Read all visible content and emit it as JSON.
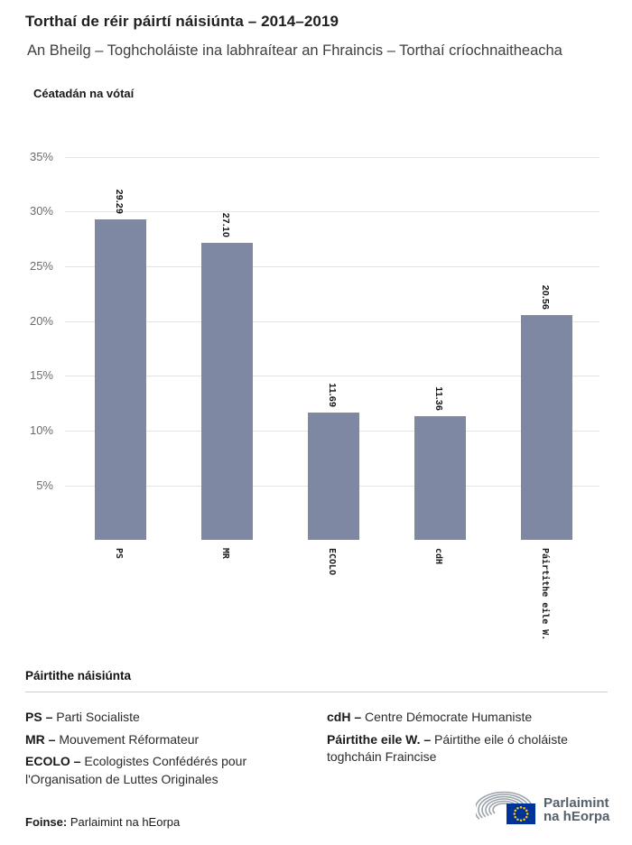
{
  "header": {
    "title": "Torthaí de réir páirtí náisiúnta – 2014–2019",
    "subtitle": "An Bheilg – Toghcholáiste ina labhraítear an Fhraincis – Torthaí críochnaitheacha"
  },
  "chart_data": {
    "type": "bar",
    "title": "Céatadán na vótaí",
    "categories": [
      "PS",
      "MR",
      "ECOLO",
      "cdH",
      "Páirtithe eile W."
    ],
    "values": [
      29.29,
      27.1,
      11.69,
      11.36,
      20.56
    ],
    "value_labels": [
      "29.29",
      "27.10",
      "11.69",
      "11.36",
      "20.56"
    ],
    "ylabel": "Céatadán na vótaí",
    "xlabel": "",
    "yticks": [
      35,
      30,
      25,
      20,
      15,
      10,
      5
    ],
    "ytick_suffix": "%",
    "ylim": [
      0,
      37.5
    ],
    "grid": true,
    "bar_color": "#7E88A3",
    "grid_color": "#e4e4e4"
  },
  "legend": {
    "heading": "Páirtithe náisiúnta",
    "left": [
      {
        "abbr": "PS –",
        "text": " Parti Socialiste"
      },
      {
        "abbr": "MR –",
        "text": " Mouvement Réformateur"
      },
      {
        "abbr": "ECOLO –",
        "text": " Ecologistes Confédérés pour l'Organisation de Luttes Originales"
      }
    ],
    "right": [
      {
        "abbr": "cdH –",
        "text": " Centre Démocrate Humaniste"
      },
      {
        "abbr": "Páirtithe eile W. –",
        "text": " Páirtithe eile ó choláiste toghcháin Fraincise"
      }
    ]
  },
  "footer": {
    "source_label": "Foinse:",
    "source_text": " Parlaimint na hEorpa",
    "logo_line1": "Parlaimint",
    "logo_line2": "na hEorpa",
    "logo_colors": {
      "flag_blue": "#003399",
      "star_gold": "#FFCC00",
      "hemicycle_gray": "#9AA2AA",
      "text_gray": "#55606a"
    }
  }
}
